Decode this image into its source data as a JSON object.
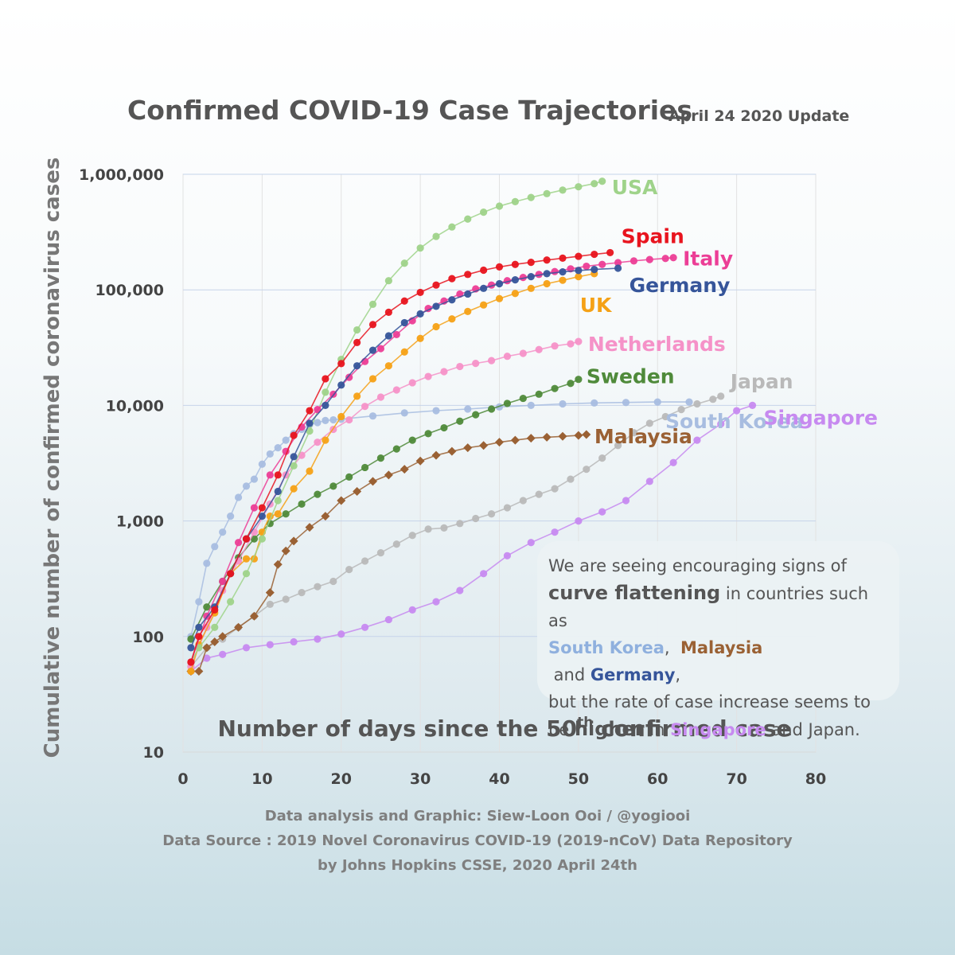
{
  "chart_data": {
    "type": "line",
    "title": "Confirmed COVID-19 Case Trajectories",
    "subtitle": "April 24 2020 Update",
    "xlabel_main": "Number of days since the 50",
    "xlabel_sup": "th",
    "xlabel_tail": " confirmed case",
    "ylabel": "Cumulative number of confirmed coronavirus cases",
    "xlim": [
      0,
      80
    ],
    "ylim": [
      10,
      1000000
    ],
    "yscale": "log",
    "grid": true,
    "x_ticks": [
      "0",
      "10",
      "20",
      "30",
      "40",
      "50",
      "60",
      "70",
      "80"
    ],
    "y_ticks": [
      "10",
      "100",
      "1,000",
      "10,000",
      "100,000",
      "1,000,000"
    ],
    "series": [
      {
        "name": "USA",
        "color": "#9fd38a",
        "marker": "circle",
        "x": [
          1,
          2,
          4,
          6,
          8,
          10,
          12,
          14,
          16,
          18,
          20,
          22,
          24,
          26,
          28,
          30,
          32,
          34,
          36,
          38,
          40,
          42,
          44,
          46,
          48,
          50,
          52,
          53
        ],
        "y": [
          60,
          80,
          120,
          200,
          350,
          700,
          1500,
          3000,
          6000,
          13000,
          25000,
          45000,
          75000,
          120000,
          170000,
          230000,
          290000,
          350000,
          410000,
          470000,
          530000,
          580000,
          630000,
          680000,
          730000,
          780000,
          830000,
          870000
        ]
      },
      {
        "name": "Spain",
        "color": "#e8141e",
        "marker": "circle",
        "x": [
          1,
          2,
          4,
          6,
          8,
          10,
          12,
          14,
          16,
          18,
          20,
          22,
          24,
          26,
          28,
          30,
          32,
          34,
          36,
          38,
          40,
          42,
          44,
          46,
          48,
          50,
          52,
          54
        ],
        "y": [
          60,
          100,
          170,
          350,
          700,
          1300,
          2500,
          5500,
          9000,
          17000,
          23000,
          35000,
          50000,
          64000,
          80000,
          95000,
          110000,
          125000,
          136000,
          148000,
          158000,
          166000,
          173000,
          181000,
          188000,
          195000,
          203000,
          210000
        ]
      },
      {
        "name": "Italy",
        "color": "#ec3e96",
        "marker": "circle",
        "x": [
          1,
          3,
          5,
          7,
          9,
          11,
          13,
          15,
          17,
          19,
          21,
          23,
          25,
          27,
          29,
          31,
          33,
          35,
          37,
          39,
          41,
          43,
          45,
          47,
          49,
          51,
          53,
          55,
          57,
          59,
          61,
          62
        ],
        "y": [
          60,
          150,
          300,
          650,
          1300,
          2500,
          4000,
          6500,
          9200,
          12500,
          17500,
          24000,
          31000,
          41000,
          54000,
          69000,
          80000,
          92000,
          102000,
          110000,
          120000,
          128000,
          136000,
          144000,
          152000,
          160000,
          166000,
          172000,
          178000,
          183000,
          187000,
          190000
        ]
      },
      {
        "name": "Germany",
        "color": "#36559a",
        "marker": "circle",
        "x": [
          1,
          2,
          4,
          6,
          8,
          10,
          12,
          14,
          16,
          18,
          20,
          22,
          24,
          26,
          28,
          30,
          32,
          34,
          36,
          38,
          40,
          42,
          44,
          46,
          48,
          50,
          52,
          55
        ],
        "y": [
          80,
          120,
          180,
          350,
          700,
          1100,
          1800,
          3600,
          7000,
          10000,
          15000,
          22000,
          30000,
          40000,
          52000,
          62000,
          72000,
          82000,
          92000,
          103000,
          113000,
          122000,
          130000,
          138000,
          143000,
          147000,
          150000,
          154000
        ]
      },
      {
        "name": "UK",
        "color": "#f5a116",
        "marker": "circle",
        "x": [
          1,
          2,
          4,
          6,
          8,
          9,
          10,
          11,
          12,
          14,
          16,
          18,
          20,
          22,
          24,
          26,
          28,
          30,
          32,
          34,
          36,
          38,
          40,
          42,
          44,
          46,
          48,
          50,
          52
        ],
        "y": [
          50,
          85,
          160,
          350,
          470,
          470,
          800,
          1100,
          1150,
          1900,
          2700,
          5000,
          8000,
          12000,
          17000,
          22000,
          29000,
          38000,
          48000,
          56000,
          65000,
          74000,
          84000,
          93000,
          103000,
          113000,
          121000,
          130000,
          138000
        ]
      },
      {
        "name": "Netherlands",
        "color": "#f592c8",
        "marker": "circle",
        "x": [
          1,
          3,
          5,
          7,
          9,
          11,
          13,
          15,
          17,
          19,
          21,
          23,
          25,
          27,
          29,
          31,
          33,
          35,
          37,
          39,
          41,
          43,
          45,
          47,
          49,
          50
        ],
        "y": [
          55,
          120,
          250,
          450,
          800,
          1400,
          2500,
          3700,
          4800,
          6200,
          7500,
          9800,
          11800,
          13600,
          15700,
          17800,
          19600,
          21700,
          23100,
          24400,
          26600,
          28200,
          30400,
          32700,
          34100,
          35700
        ]
      },
      {
        "name": "Sweden",
        "color": "#4f8a3a",
        "marker": "circle",
        "x": [
          1,
          3,
          5,
          7,
          9,
          11,
          13,
          15,
          17,
          19,
          21,
          23,
          25,
          27,
          29,
          31,
          33,
          35,
          37,
          39,
          41,
          43,
          45,
          47,
          49,
          50
        ],
        "y": [
          95,
          180,
          300,
          480,
          700,
          950,
          1150,
          1400,
          1700,
          2000,
          2400,
          2900,
          3500,
          4200,
          5000,
          5700,
          6400,
          7300,
          8300,
          9300,
          10400,
          11500,
          12500,
          14000,
          15500,
          16800
        ]
      },
      {
        "name": "South Korea",
        "color": "#a8bde0",
        "marker": "circle",
        "x": [
          1,
          2,
          3,
          4,
          5,
          6,
          7,
          8,
          9,
          10,
          11,
          12,
          13,
          14,
          15,
          16,
          17,
          18,
          19,
          20,
          24,
          28,
          32,
          36,
          40,
          44,
          48,
          52,
          56,
          60,
          64
        ],
        "y": [
          100,
          200,
          430,
          600,
          800,
          1100,
          1600,
          2000,
          2300,
          3100,
          3800,
          4300,
          5000,
          5700,
          6200,
          6800,
          7100,
          7400,
          7500,
          7600,
          8100,
          8600,
          9000,
          9300,
          9700,
          10000,
          10300,
          10500,
          10600,
          10700,
          10700
        ]
      },
      {
        "name": "Malaysia",
        "color": "#9a6134",
        "marker": "diamond",
        "x": [
          1,
          2,
          3,
          4,
          5,
          7,
          9,
          11,
          12,
          13,
          14,
          16,
          18,
          20,
          22,
          24,
          26,
          28,
          30,
          32,
          34,
          36,
          38,
          40,
          42,
          44,
          46,
          48,
          50,
          51
        ],
        "y": [
          50,
          50,
          80,
          90,
          100,
          120,
          150,
          240,
          420,
          550,
          670,
          880,
          1100,
          1500,
          1800,
          2200,
          2500,
          2800,
          3300,
          3700,
          4000,
          4300,
          4500,
          4800,
          5000,
          5200,
          5300,
          5400,
          5500,
          5600
        ]
      },
      {
        "name": "Japan",
        "color": "#b9b9b9",
        "marker": "circle",
        "x": [
          1,
          3,
          5,
          7,
          9,
          11,
          13,
          15,
          17,
          19,
          21,
          23,
          25,
          27,
          29,
          31,
          33,
          35,
          37,
          39,
          41,
          43,
          45,
          47,
          49,
          51,
          53,
          55,
          57,
          59,
          61,
          63,
          65,
          67,
          68
        ],
        "y": [
          55,
          80,
          95,
          120,
          150,
          190,
          210,
          240,
          270,
          300,
          380,
          450,
          530,
          630,
          750,
          850,
          870,
          950,
          1050,
          1150,
          1300,
          1500,
          1700,
          1900,
          2300,
          2800,
          3500,
          4500,
          5800,
          7000,
          8000,
          9200,
          10300,
          11300,
          12000
        ]
      },
      {
        "name": "Singapore",
        "color": "#c78af0",
        "marker": "circle",
        "x": [
          1,
          3,
          5,
          8,
          11,
          14,
          17,
          20,
          23,
          26,
          29,
          32,
          35,
          38,
          41,
          44,
          47,
          50,
          53,
          56,
          59,
          62,
          65,
          68,
          70,
          72
        ],
        "y": [
          50,
          65,
          70,
          80,
          85,
          90,
          95,
          105,
          120,
          140,
          170,
          200,
          250,
          350,
          500,
          650,
          800,
          1000,
          1200,
          1500,
          2200,
          3200,
          5000,
          6900,
          9000,
          10000
        ]
      }
    ]
  },
  "note": {
    "line1": "We are seeing encouraging signs of",
    "curve": "curve flattening",
    "line2_tail": " in countries such as",
    "sk": "South Korea",
    "sep1": ",  ",
    "my": "Malaysia",
    "and1": " and ",
    "de": "Germany",
    "comma": ",",
    "line4": "but the rate of case increase seems to",
    "be": "be ",
    "higher": "higher",
    "in": " in ",
    "sg": "Singapore",
    "and2": " and Japan."
  },
  "credits": {
    "line1": "Data analysis and Graphic: Siew-Loon Ooi / @yogiooi",
    "line2": "Data Source : 2019 Novel Coronavirus COVID-19 (2019-nCoV) Data Repository",
    "line3": "by Johns Hopkins CSSE, 2020 April 24th"
  }
}
